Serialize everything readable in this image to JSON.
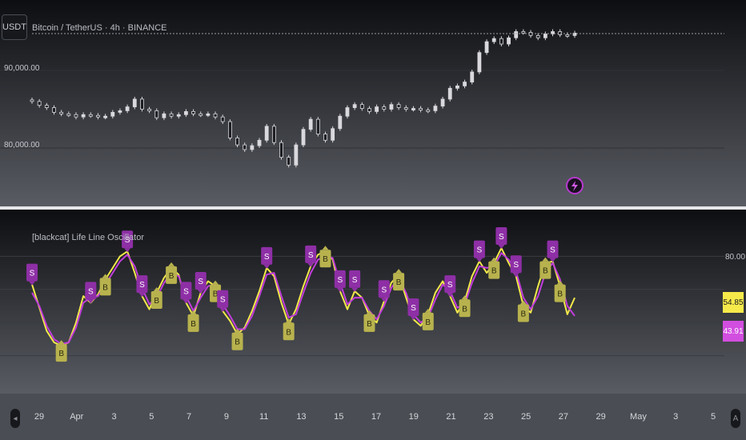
{
  "toolbar": {
    "symbol_button_label": "USDT"
  },
  "colors": {
    "candle": "#d9d9dd",
    "fast_line": "#f2e94a",
    "slow_line": "#c13ddc",
    "sell_marker": "#8e2fa6",
    "buy_marker": "#b8b24e",
    "price_line": "#9a9ca3"
  },
  "price_pane": {
    "title": "Bitcoin / TetherUS · 4h · BINANCE",
    "tick_labels": [
      "90,000.00",
      "80,000.00"
    ],
    "flash_icon": "lightning-icon"
  },
  "oscillator_pane": {
    "title": "[blackcat] Life Line Oscillator",
    "tick_label": "80.00",
    "current_fast_value": "54.85",
    "current_slow_value": "43.91",
    "sell_marker_text": "S",
    "buy_marker_text": "B"
  },
  "time_axis": {
    "labels": [
      "29",
      "Apr",
      "3",
      "5",
      "7",
      "9",
      "11",
      "13",
      "15",
      "17",
      "19",
      "21",
      "23",
      "25",
      "27",
      "29",
      "May",
      "3",
      "5"
    ],
    "left_icon": "scroll-left-icon",
    "right_icon": "auto-scale-icon"
  },
  "chart_data": {
    "type": "line",
    "price_axis_ticks": [
      90000,
      80000
    ],
    "oscillator_axis_ticks": [
      80
    ],
    "oscillator_series": [
      {
        "name": "fast",
        "color": "#f2e94a",
        "values": [
          63,
          49,
          35,
          28,
          26,
          28,
          40,
          56,
          52,
          57,
          66,
          73,
          80,
          83,
          70,
          56,
          48,
          58,
          67,
          73,
          69,
          52,
          44,
          58,
          65,
          62,
          47,
          41,
          33,
          37,
          47,
          59,
          73,
          68,
          52,
          39,
          48,
          62,
          74,
          81,
          83,
          78,
          59,
          48,
          59,
          55,
          44,
          40,
          53,
          64,
          69,
          55,
          42,
          38,
          45,
          58,
          65,
          56,
          46,
          53,
          68,
          77,
          70,
          76,
          85,
          76,
          68,
          50,
          46,
          62,
          76,
          77,
          62,
          45,
          55
        ]
      },
      {
        "name": "slow",
        "color": "#c13ddc",
        "values": [
          58,
          50,
          38,
          30,
          27,
          28,
          37,
          52,
          55,
          56,
          63,
          70,
          77,
          81,
          74,
          61,
          51,
          55,
          64,
          70,
          68,
          56,
          47,
          55,
          62,
          63,
          51,
          44,
          36,
          36,
          44,
          56,
          69,
          70,
          56,
          43,
          45,
          58,
          70,
          78,
          80,
          79,
          64,
          51,
          55,
          55,
          47,
          42,
          50,
          61,
          67,
          58,
          45,
          40,
          43,
          54,
          63,
          59,
          49,
          51,
          64,
          74,
          73,
          74,
          82,
          78,
          71,
          55,
          48,
          56,
          70,
          76,
          66,
          50,
          44
        ]
      }
    ],
    "oscillator_signals": [
      {
        "bar": 0,
        "type": "sell"
      },
      {
        "bar": 4,
        "type": "buy"
      },
      {
        "bar": 8,
        "type": "sell"
      },
      {
        "bar": 10,
        "type": "buy"
      },
      {
        "bar": 13,
        "type": "sell"
      },
      {
        "bar": 15,
        "type": "sell"
      },
      {
        "bar": 17,
        "type": "buy"
      },
      {
        "bar": 19,
        "type": "buy"
      },
      {
        "bar": 21,
        "type": "sell"
      },
      {
        "bar": 22,
        "type": "buy"
      },
      {
        "bar": 23,
        "type": "sell"
      },
      {
        "bar": 25,
        "type": "buy"
      },
      {
        "bar": 26,
        "type": "sell"
      },
      {
        "bar": 28,
        "type": "buy"
      },
      {
        "bar": 32,
        "type": "sell"
      },
      {
        "bar": 35,
        "type": "buy"
      },
      {
        "bar": 38,
        "type": "sell"
      },
      {
        "bar": 40,
        "type": "buy"
      },
      {
        "bar": 42,
        "type": "sell"
      },
      {
        "bar": 44,
        "type": "sell"
      },
      {
        "bar": 46,
        "type": "buy"
      },
      {
        "bar": 48,
        "type": "sell"
      },
      {
        "bar": 50,
        "type": "buy"
      },
      {
        "bar": 52,
        "type": "sell"
      },
      {
        "bar": 54,
        "type": "buy"
      },
      {
        "bar": 57,
        "type": "sell"
      },
      {
        "bar": 59,
        "type": "buy"
      },
      {
        "bar": 61,
        "type": "sell"
      },
      {
        "bar": 63,
        "type": "buy"
      },
      {
        "bar": 64,
        "type": "sell"
      },
      {
        "bar": 66,
        "type": "sell"
      },
      {
        "bar": 67,
        "type": "buy"
      },
      {
        "bar": 70,
        "type": "buy"
      },
      {
        "bar": 71,
        "type": "sell"
      },
      {
        "bar": 72,
        "type": "buy"
      }
    ],
    "price_series": {
      "name": "BTCUSDT",
      "close": [
        86000,
        85500,
        85200,
        84600,
        84400,
        84300,
        84000,
        84300,
        84200,
        84000,
        84100,
        84600,
        84800,
        85300,
        86300,
        85000,
        84800,
        83900,
        84400,
        84100,
        84300,
        84700,
        84400,
        84300,
        84400,
        84000,
        83400,
        81300,
        80400,
        79800,
        80300,
        81000,
        82800,
        80700,
        78800,
        77800,
        80400,
        82400,
        83700,
        81800,
        81000,
        82500,
        84100,
        85200,
        85600,
        85100,
        84700,
        85300,
        85000,
        85600,
        85200,
        85000,
        85100,
        84900,
        84800,
        85400,
        86300,
        87700,
        88000,
        88500,
        89800,
        92300,
        93700,
        94100,
        93400,
        94200,
        95000,
        94900,
        94500,
        94200,
        94700,
        95000,
        94600,
        94500,
        94800
      ]
    }
  }
}
